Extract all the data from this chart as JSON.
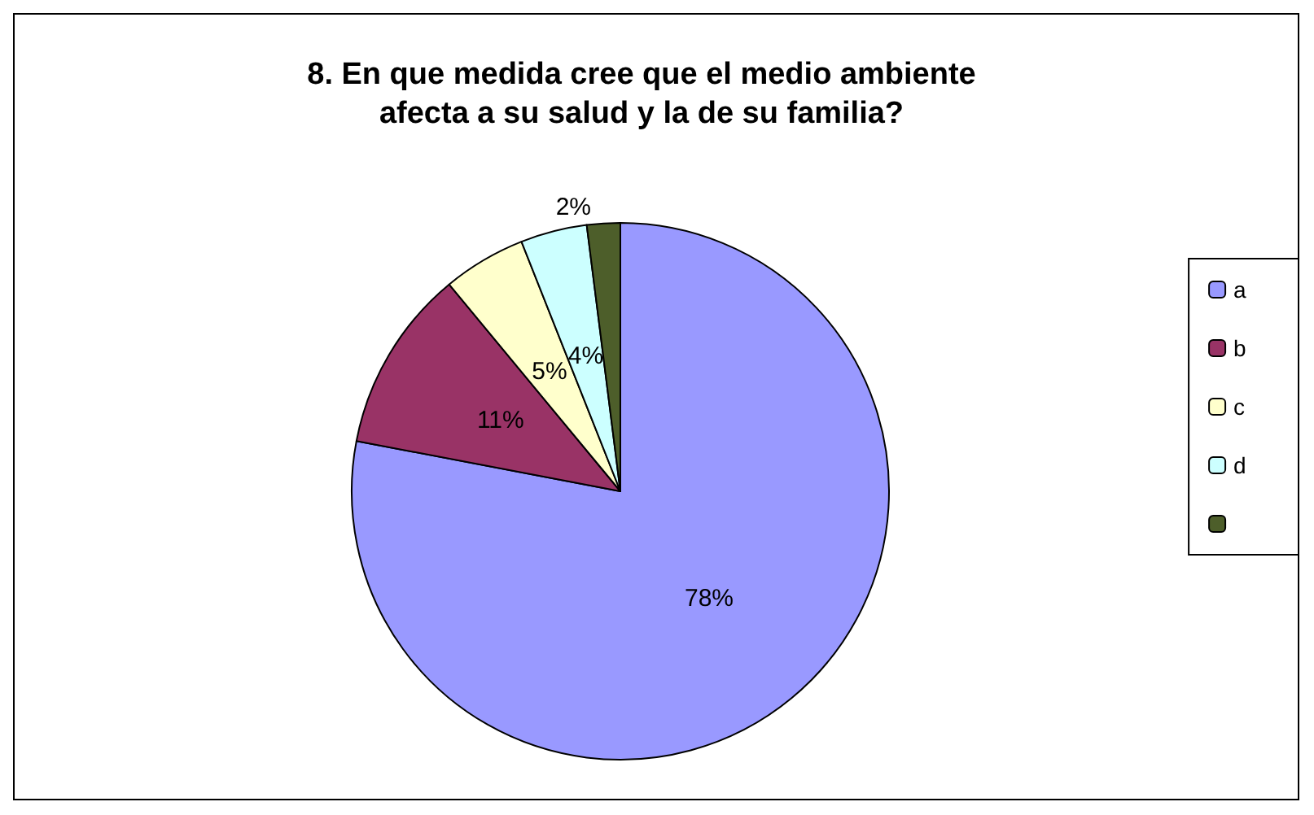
{
  "chart_data": {
    "type": "pie",
    "title": "8. En que medida cree que el medio ambiente\nafecta a su salud y la de su familia?",
    "categories": [
      "a",
      "b",
      "c",
      "d",
      null
    ],
    "values": [
      78,
      11,
      5,
      4,
      2
    ],
    "colors": [
      "#9999ff",
      "#993366",
      "#ffffcc",
      "#ccffff",
      "#4d5e2a"
    ],
    "value_labels": [
      "78%",
      "11%",
      "5%",
      "4%",
      "2%"
    ],
    "legend": "right"
  }
}
